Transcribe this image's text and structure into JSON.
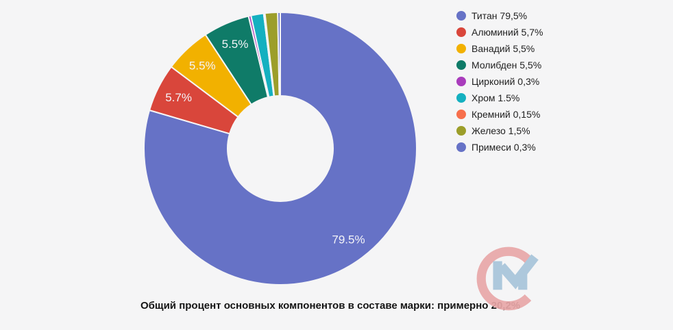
{
  "background": "#f5f5f6",
  "chart_data": {
    "type": "pie",
    "donut": true,
    "start_angle_deg": 0,
    "direction": "clockwise",
    "categories": [
      "Титан",
      "Алюминий",
      "Ванадий",
      "Молибден",
      "Цирконий",
      "Хром",
      "Кремний",
      "Железо",
      "Примеси"
    ],
    "values": [
      79.5,
      5.7,
      5.5,
      5.5,
      0.3,
      1.5,
      0.15,
      1.5,
      0.3
    ],
    "colors": [
      "#6672c6",
      "#d9463b",
      "#f2b100",
      "#0f7b68",
      "#a93cbc",
      "#14b0c0",
      "#f76f4c",
      "#9c9e2a",
      "#6672c6"
    ],
    "slice_labels": [
      "79.5%",
      "5.7%",
      "5.5%",
      "5.5%",
      "",
      "",
      "",
      "",
      ""
    ],
    "slice_label_color": "#f4f4f8",
    "legend_position": "right",
    "legend": {
      "items": [
        {
          "label": "Титан 79,5%",
          "color": "#6672c6"
        },
        {
          "label": "Алюминий 5,7%",
          "color": "#d9463b"
        },
        {
          "label": "Ванадий 5,5%",
          "color": "#f2b100"
        },
        {
          "label": "Молибден 5,5%",
          "color": "#0f7b68"
        },
        {
          "label": "Цирконий 0,3%",
          "color": "#a93cbc"
        },
        {
          "label": "Хром 1.5%",
          "color": "#14b0c0"
        },
        {
          "label": "Кремний 0,15%",
          "color": "#f76f4c"
        },
        {
          "label": "Железо 1,5%",
          "color": "#9c9e2a"
        },
        {
          "label": "Примеси 0,3%",
          "color": "#6672c6"
        }
      ]
    }
  },
  "caption": "Общий процент основных компонентов в составе марки: примерно 20,2%",
  "watermark": {
    "letters": "СМ",
    "c_color": "#e9a7a8",
    "m_color": "#a7c5da"
  }
}
